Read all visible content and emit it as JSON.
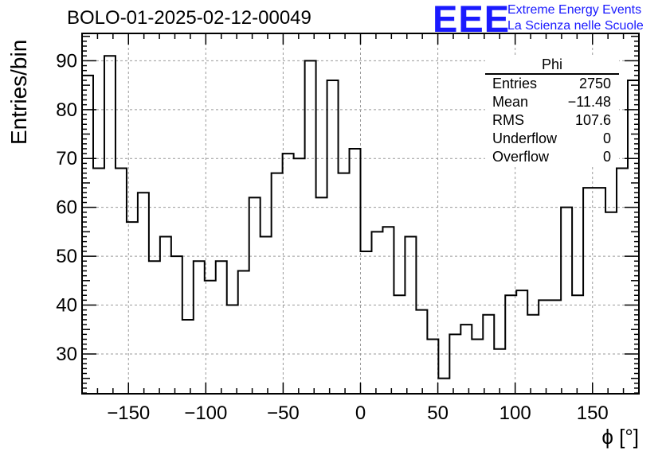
{
  "header": {
    "title": "BOLO-01-2025-02-12-00049",
    "logo_text": "EEE",
    "logo_line1": "Extreme Energy Events",
    "logo_line2": "La Scienza nelle Scuole"
  },
  "stats_box": {
    "name": "Phi",
    "rows": [
      {
        "label": "Entries",
        "value": "2750"
      },
      {
        "label": "Mean",
        "value": "−11.48"
      },
      {
        "label": "RMS",
        "value": "107.6"
      },
      {
        "label": "Underflow",
        "value": "0"
      },
      {
        "label": "Overflow",
        "value": "0"
      }
    ]
  },
  "colors": {
    "logo": "#1a1aff",
    "line": "#000000",
    "grid": "#9a9a9a"
  },
  "chart_data": {
    "type": "bar",
    "style": "step-histogram",
    "title": "BOLO-01-2025-02-12-00049",
    "xlabel": "ϕ [°]",
    "ylabel": "Entries/bin",
    "xlim": [
      -180,
      180
    ],
    "ylim": [
      21.85,
      95.6
    ],
    "bin_width": 7.2,
    "bin_low_edges": [
      -180,
      -172.8,
      -165.6,
      -158.4,
      -151.2,
      -144,
      -136.8,
      -129.6,
      -122.4,
      -115.2,
      -108,
      -100.8,
      -93.6,
      -86.4,
      -79.2,
      -72,
      -64.8,
      -57.6,
      -50.4,
      -43.2,
      -36,
      -28.8,
      -21.6,
      -14.4,
      -7.2,
      0,
      7.2,
      14.4,
      21.6,
      28.8,
      36,
      43.2,
      50.4,
      57.6,
      64.8,
      72,
      79.2,
      86.4,
      93.6,
      100.8,
      108,
      115.2,
      122.4,
      129.6,
      136.8,
      144,
      151.2,
      158.4,
      165.6,
      172.8
    ],
    "values": [
      87,
      68,
      91,
      68,
      57,
      63,
      49,
      54,
      50,
      37,
      49,
      45,
      49,
      40,
      47,
      62,
      54,
      67,
      71,
      70,
      90,
      62,
      86,
      67,
      72,
      51,
      55,
      56,
      42,
      54,
      39,
      33,
      25,
      34,
      36,
      33,
      38,
      31,
      42,
      43,
      38,
      41,
      41,
      60,
      42,
      64,
      64,
      59,
      68,
      86
    ],
    "x_ticks": [
      -150,
      -100,
      -50,
      0,
      50,
      100,
      150
    ],
    "x_tick_labels": [
      "−150",
      "−100",
      "−50",
      "0",
      "50",
      "100",
      "150"
    ],
    "y_ticks": [
      30,
      40,
      50,
      60,
      70,
      80,
      90
    ],
    "y_tick_labels": [
      "30",
      "40",
      "50",
      "60",
      "70",
      "80",
      "90"
    ],
    "grid": true,
    "legend": "top-right stats box"
  }
}
